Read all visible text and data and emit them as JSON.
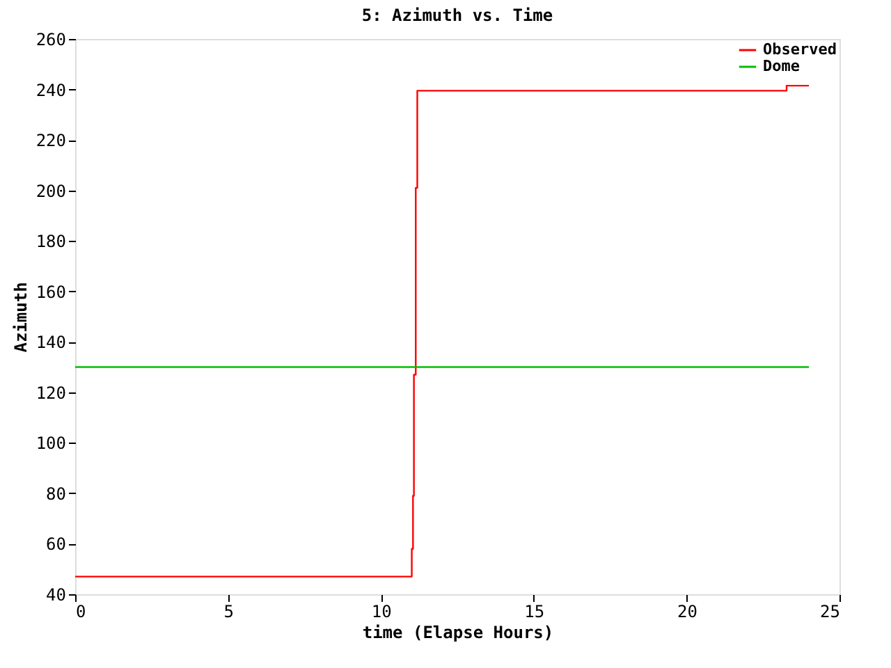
{
  "chart_data": {
    "type": "step",
    "title": "5: Azimuth vs. Time",
    "xlabel": "time (Elapse Hours)",
    "ylabel": "Azimuth",
    "xlim": [
      0,
      25
    ],
    "xticks": [
      0,
      5,
      10,
      15,
      20,
      25
    ],
    "ylim": [
      40,
      260
    ],
    "yticks": [
      40,
      60,
      80,
      100,
      120,
      140,
      160,
      180,
      200,
      220,
      240,
      260
    ],
    "grid": false,
    "legend": "top right",
    "line_style": "solid",
    "marker": "none",
    "series": [
      {
        "name": "Observed",
        "color": "#ff0000",
        "x": [
          0,
          11.01,
          11.05,
          11.08,
          11.14,
          11.19,
          23.27,
          24
        ],
        "values": [
          47,
          58,
          79,
          127,
          201,
          239.5,
          241.5,
          241.5
        ]
      },
      {
        "name": "Dome",
        "color": "#00c000",
        "type": "line",
        "x": [
          0,
          24
        ],
        "values": [
          130,
          130
        ]
      }
    ]
  }
}
